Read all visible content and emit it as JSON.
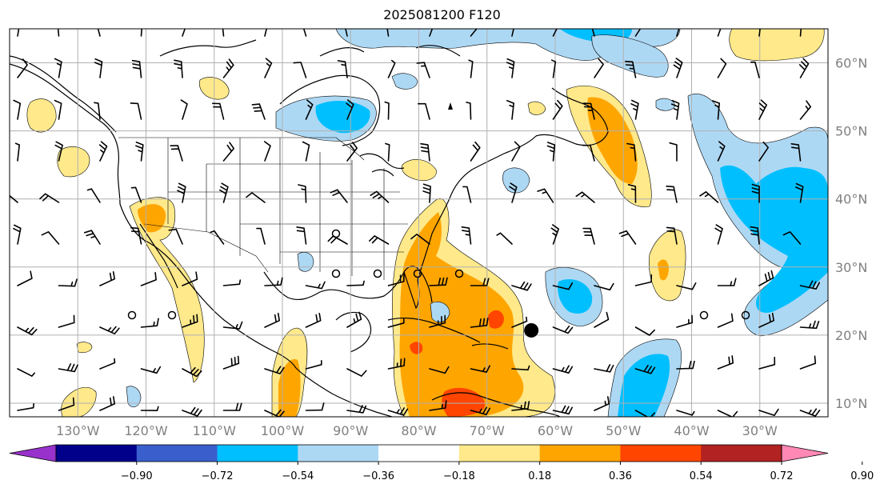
{
  "title": "2025081200 F120",
  "map": {
    "lon_min": -140,
    "lon_max": -20,
    "lat_min": 8,
    "lat_max": 65,
    "lat_lines": [
      10,
      20,
      30,
      40,
      50,
      60
    ],
    "lon_lines": [
      -130,
      -120,
      -110,
      -100,
      -90,
      -80,
      -70,
      -60,
      -50,
      -40,
      -30
    ],
    "lat_labels": [
      "10°N",
      "20°N",
      "30°N",
      "40°N",
      "50°N",
      "60°N"
    ],
    "lon_labels": [
      "130°W",
      "120°W",
      "110°W",
      "100°W",
      "90°W",
      "80°W",
      "70°W",
      "60°W",
      "50°W",
      "40°W",
      "30°W"
    ]
  },
  "colorbar": {
    "ticks": [
      "−0.90",
      "−0.72",
      "−0.54",
      "−0.36",
      "−0.18",
      "0.18",
      "0.36",
      "0.54",
      "0.72",
      "0.90"
    ],
    "colors": [
      "#9932cc",
      "#00008b",
      "#3a5fcd",
      "#00bfff",
      "#add8f4",
      "#ffffff",
      "#ffe98a",
      "#ffa500",
      "#ff4500",
      "#b22222",
      "#ff88b4"
    ]
  },
  "colors": {
    "pos_light": "#ffe98a",
    "pos_mid": "#ffa500",
    "pos_strong": "#ff4500",
    "neg_light": "#add8f4",
    "neg_mid": "#00bfff",
    "coast": "#000000",
    "grid": "#b0b0b0"
  },
  "marker": {
    "name": "black-dot",
    "lon": -63.5,
    "lat": 20.7
  }
}
